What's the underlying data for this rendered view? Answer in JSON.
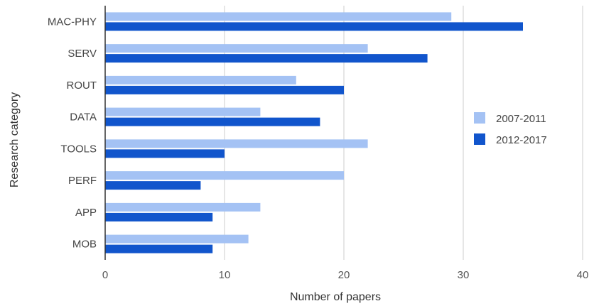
{
  "chart_data": {
    "type": "bar",
    "orientation": "horizontal",
    "categories": [
      "MAC-PHY",
      "SERV",
      "ROUT",
      "DATA",
      "TOOLS",
      "PERF",
      "APP",
      "MOB"
    ],
    "series": [
      {
        "name": "2007-2011",
        "color": "#a4c2f4",
        "values": [
          29,
          22,
          16,
          13,
          22,
          20,
          13,
          12
        ]
      },
      {
        "name": "2012-2017",
        "color": "#1155cc",
        "values": [
          35,
          27,
          20,
          18,
          10,
          8,
          9,
          9
        ]
      }
    ],
    "xlabel": "Number of papers",
    "ylabel": "Research category",
    "xlim": [
      0,
      40
    ],
    "xticks": [
      0,
      10,
      20,
      30,
      40
    ],
    "grid": "vertical",
    "legend_position": "right"
  }
}
